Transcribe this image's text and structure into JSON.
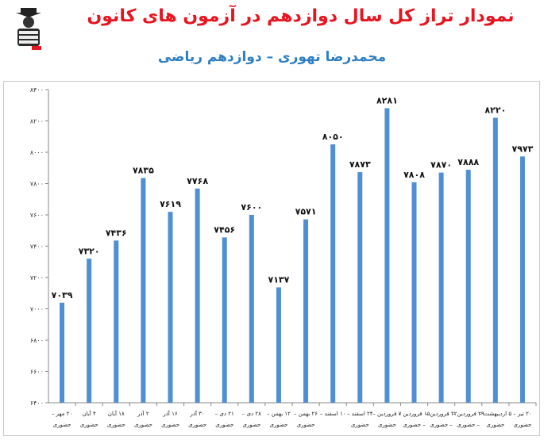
{
  "header": {
    "title": "نمودار تراز کل سال دوازدهم در آزمون های کانون",
    "subtitle": "محمدرضا تهوری – دوازدهم ریاضی",
    "logo_icon": "student-mascot-logo"
  },
  "colors": {
    "title": "#e8141f",
    "subtitle": "#2e7fc1",
    "bar": "#4f8fd3"
  },
  "chart_data": {
    "type": "bar",
    "ylim": [
      6400,
      8400
    ],
    "yticks": [
      6400,
      6600,
      6800,
      7000,
      7200,
      7400,
      7600,
      7800,
      8000,
      8200,
      8400
    ],
    "grid": false,
    "categories": [
      [
        "۲۰ مهر –",
        "حضوری"
      ],
      [
        "۴ آبان",
        "حضوری"
      ],
      [
        "۱۸ آبان",
        "حضوری"
      ],
      [
        "۲ آذر",
        "حضوری"
      ],
      [
        "۱۶ آذر",
        "حضوری"
      ],
      [
        "۳۰ آذر",
        "حضوری"
      ],
      [
        "۲۱ دی –",
        "حضوری"
      ],
      [
        "۲۸ دی –",
        "حضوری"
      ],
      [
        "۱۲ بهمن –",
        "حضوری"
      ],
      [
        "۲۶ بهمن –",
        "حضوری"
      ],
      [
        "۱۰ اسفند –",
        ""
      ],
      [
        "۲۴ اسفند –",
        "حضوری"
      ],
      [
        "۷ فروردین –",
        "حضوری"
      ],
      [
        "۱۵ فروردین –",
        "– حضوری"
      ],
      [
        "۲۲ فروردین –",
        "– حضوری"
      ],
      [
        "۲۹ فروردین –",
        "– حضوری"
      ],
      [
        "۵ اردیبهشت –",
        "حضوری"
      ],
      [
        "۲۰ تیر –",
        "حضوری"
      ]
    ],
    "values": [
      7039,
      7320,
      7436,
      7835,
      7619,
      7768,
      7456,
      7600,
      7137,
      7571,
      8050,
      7873,
      8281,
      7808,
      7870,
      7888,
      8220,
      7973
    ],
    "value_labels": [
      "۷۰۳۹",
      "۷۳۲۰",
      "۷۴۳۶",
      "۷۸۳۵",
      "۷۶۱۹",
      "۷۷۶۸",
      "۷۴۵۶",
      "۷۶۰۰",
      "۷۱۳۷",
      "۷۵۷۱",
      "۸۰۵۰",
      "۷۸۷۳",
      "۸۲۸۱",
      "۷۸۰۸",
      "۷۸۷۰",
      "۷۸۸۸",
      "۸۲۲۰",
      "۷۹۷۳"
    ],
    "ytick_labels": [
      "۶۴۰۰",
      "۶۶۰۰",
      "۶۸۰۰",
      "۷۰۰۰",
      "۷۲۰۰",
      "۷۴۰۰",
      "۷۶۰۰",
      "۷۸۰۰",
      "۸۰۰۰",
      "۸۲۰۰",
      "۸۴۰۰"
    ]
  }
}
